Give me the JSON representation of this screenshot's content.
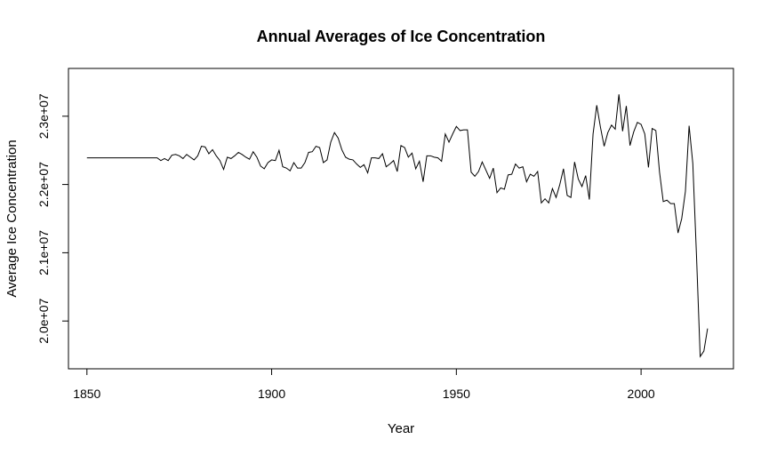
{
  "chart_data": {
    "type": "line",
    "title": "Annual Averages of Ice Concentration",
    "xlabel": "Year",
    "ylabel": "Average Ice Concentration",
    "xlim": [
      1845,
      2025
    ],
    "ylim": [
      19300000,
      23700000
    ],
    "x_ticks": [
      1850,
      1900,
      1950,
      2000
    ],
    "y_ticks": [
      20000000,
      21000000,
      22000000,
      23000000
    ],
    "y_tick_labels": [
      "2.0e+07",
      "2.1e+07",
      "2.2e+07",
      "2.3e+07"
    ],
    "grid": false,
    "legend": "none",
    "series": [
      {
        "color": "#000000",
        "x": [
          1850,
          1851,
          1852,
          1853,
          1854,
          1855,
          1856,
          1857,
          1858,
          1859,
          1860,
          1861,
          1862,
          1863,
          1864,
          1865,
          1866,
          1867,
          1868,
          1869,
          1870,
          1871,
          1872,
          1873,
          1874,
          1875,
          1876,
          1877,
          1878,
          1879,
          1880,
          1881,
          1882,
          1883,
          1884,
          1885,
          1886,
          1887,
          1888,
          1889,
          1890,
          1891,
          1892,
          1893,
          1894,
          1895,
          1896,
          1897,
          1898,
          1899,
          1900,
          1901,
          1902,
          1903,
          1904,
          1905,
          1906,
          1907,
          1908,
          1909,
          1910,
          1911,
          1912,
          1913,
          1914,
          1915,
          1916,
          1917,
          1918,
          1919,
          1920,
          1921,
          1922,
          1923,
          1924,
          1925,
          1926,
          1927,
          1928,
          1929,
          1930,
          1931,
          1932,
          1933,
          1934,
          1935,
          1936,
          1937,
          1938,
          1939,
          1940,
          1941,
          1942,
          1943,
          1944,
          1945,
          1946,
          1947,
          1948,
          1949,
          1950,
          1951,
          1952,
          1953,
          1954,
          1955,
          1956,
          1957,
          1958,
          1959,
          1960,
          1961,
          1962,
          1963,
          1964,
          1965,
          1966,
          1967,
          1968,
          1969,
          1970,
          1971,
          1972,
          1973,
          1974,
          1975,
          1976,
          1977,
          1978,
          1979,
          1980,
          1981,
          1982,
          1983,
          1984,
          1985,
          1986,
          1987,
          1988,
          1989,
          1990,
          1991,
          1992,
          1993,
          1994,
          1995,
          1996,
          1997,
          1998,
          1999,
          2000,
          2001,
          2002,
          2003,
          2004,
          2005,
          2006,
          2007,
          2008,
          2009,
          2010,
          2011,
          2012,
          2013,
          2014,
          2015,
          2016,
          2017,
          2018
        ],
        "values": [
          22390000,
          22390000,
          22390000,
          22390000,
          22390000,
          22390000,
          22390000,
          22390000,
          22390000,
          22390000,
          22390000,
          22390000,
          22390000,
          22390000,
          22390000,
          22390000,
          22390000,
          22390000,
          22390000,
          22390000,
          22350000,
          22380000,
          22350000,
          22430000,
          22440000,
          22420000,
          22380000,
          22440000,
          22400000,
          22360000,
          22420000,
          22560000,
          22550000,
          22450000,
          22510000,
          22420000,
          22350000,
          22220000,
          22400000,
          22380000,
          22420000,
          22470000,
          22440000,
          22400000,
          22370000,
          22480000,
          22400000,
          22270000,
          22230000,
          22320000,
          22360000,
          22350000,
          22500000,
          22260000,
          22240000,
          22200000,
          22320000,
          22240000,
          22240000,
          22320000,
          22470000,
          22480000,
          22560000,
          22540000,
          22320000,
          22360000,
          22620000,
          22760000,
          22680000,
          22510000,
          22400000,
          22370000,
          22360000,
          22300000,
          22250000,
          22290000,
          22170000,
          22390000,
          22390000,
          22380000,
          22450000,
          22260000,
          22300000,
          22350000,
          22190000,
          22570000,
          22540000,
          22400000,
          22460000,
          22230000,
          22340000,
          22040000,
          22420000,
          22420000,
          22400000,
          22390000,
          22340000,
          22740000,
          22620000,
          22740000,
          22850000,
          22790000,
          22800000,
          22800000,
          22180000,
          22120000,
          22190000,
          22330000,
          22210000,
          22090000,
          22240000,
          21880000,
          21950000,
          21930000,
          22140000,
          22150000,
          22300000,
          22240000,
          22260000,
          22040000,
          22150000,
          22120000,
          22190000,
          21730000,
          21790000,
          21730000,
          21940000,
          21810000,
          22000000,
          22230000,
          21840000,
          21810000,
          22330000,
          22080000,
          21970000,
          22130000,
          21780000,
          22740000,
          23160000,
          22840000,
          22560000,
          22760000,
          22870000,
          22810000,
          23320000,
          22780000,
          23150000,
          22570000,
          22770000,
          22910000,
          22880000,
          22740000,
          22250000,
          22820000,
          22790000,
          22180000,
          21750000,
          21770000,
          21720000,
          21720000,
          21290000,
          21500000,
          21900000,
          22860000,
          22310000,
          20960000,
          19480000,
          19560000,
          19890000
        ]
      }
    ]
  }
}
